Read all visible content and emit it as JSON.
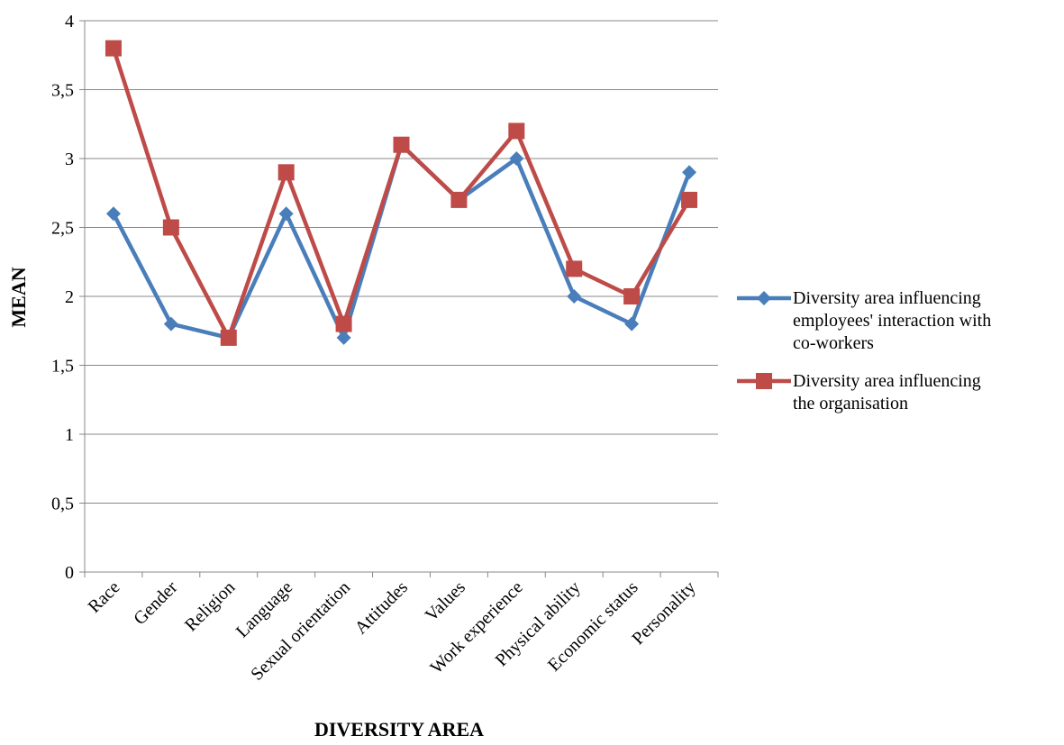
{
  "chart_data": {
    "type": "line",
    "title": "",
    "xlabel": "DIVERSITY AREA",
    "ylabel": "MEAN",
    "ylim": [
      0,
      4
    ],
    "yticks": [
      "0",
      "0,5",
      "1",
      "1,5",
      "2",
      "2,5",
      "3",
      "3,5",
      "4"
    ],
    "grid": true,
    "legend_position": "right",
    "categories": [
      "Race",
      "Gender",
      "Religion",
      "Language",
      "Sexual orientation",
      "Attitudes",
      "Values",
      "Work experience",
      "Physical ability",
      "Economic status",
      "Personality"
    ],
    "series": [
      {
        "name": "Diversity area influencing employees' interaction with co-workers",
        "legend_lines": [
          "Diversity area influencing",
          "employees' interaction with",
          "co-workers"
        ],
        "color": "#4A7EBB",
        "marker": "diamond",
        "values": [
          2.6,
          1.8,
          1.7,
          2.6,
          1.7,
          3.1,
          2.7,
          3.0,
          2.0,
          1.8,
          2.9
        ]
      },
      {
        "name": "Diversity area influencing the organisation",
        "legend_lines": [
          "Diversity area influencing",
          "the organisation"
        ],
        "color": "#BE4B48",
        "marker": "square",
        "values": [
          3.8,
          2.5,
          1.7,
          2.9,
          1.8,
          3.1,
          2.7,
          3.2,
          2.2,
          2.0,
          2.7
        ]
      }
    ]
  }
}
